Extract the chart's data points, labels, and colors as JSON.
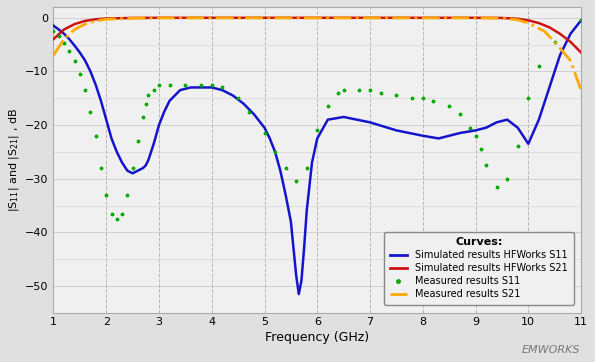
{
  "title": "",
  "xlabel": "Frequency (GHz)",
  "ylabel": "|S$_{11}$| and |S$_{21}$| , dB",
  "xlim": [
    1,
    11
  ],
  "ylim": [
    -55,
    2
  ],
  "xticks": [
    1,
    2,
    3,
    4,
    5,
    6,
    7,
    8,
    9,
    10,
    11
  ],
  "yticks": [
    0,
    -10,
    -20,
    -30,
    -40,
    -50
  ],
  "plot_bg_color": "#f0f0f0",
  "fig_bg_color": "#e0e0e0",
  "grid_color": "#d0d0d0",
  "vgrid_color": "#b8b8b8",
  "legend_title": "Curves:",
  "legend_entries": [
    {
      "label": "Simulated results HFWorks S11",
      "color": "#1414cc",
      "linestyle": "solid",
      "linewidth": 1.8
    },
    {
      "label": "Simulated results HFWorks S21",
      "color": "#cc1414",
      "linestyle": "solid",
      "linewidth": 1.8
    },
    {
      "label": "Measured results S11",
      "color": "#00aa00",
      "linestyle": "dotted",
      "linewidth": 2.0
    },
    {
      "label": "Measured results S21",
      "color": "#ffaa00",
      "linestyle": "dashdot",
      "linewidth": 2.0
    }
  ],
  "S11_sim_x": [
    1.0,
    1.1,
    1.2,
    1.3,
    1.4,
    1.5,
    1.6,
    1.7,
    1.8,
    1.9,
    2.0,
    2.1,
    2.2,
    2.3,
    2.4,
    2.5,
    2.6,
    2.7,
    2.75,
    2.8,
    2.9,
    3.0,
    3.1,
    3.2,
    3.4,
    3.6,
    3.8,
    4.0,
    4.2,
    4.4,
    4.6,
    4.8,
    5.0,
    5.1,
    5.2,
    5.3,
    5.4,
    5.5,
    5.55,
    5.6,
    5.65,
    5.7,
    5.75,
    5.8,
    5.9,
    6.0,
    6.2,
    6.5,
    7.0,
    7.5,
    8.0,
    8.3,
    8.5,
    8.7,
    9.0,
    9.2,
    9.4,
    9.6,
    9.8,
    10.0,
    10.2,
    10.4,
    10.6,
    10.8,
    11.0
  ],
  "S11_sim_y": [
    -1.5,
    -2.2,
    -3.0,
    -4.0,
    -5.2,
    -6.5,
    -8.0,
    -10.0,
    -12.5,
    -15.5,
    -19.0,
    -22.5,
    -25.0,
    -27.0,
    -28.5,
    -29.0,
    -28.5,
    -28.0,
    -27.5,
    -26.5,
    -23.5,
    -20.0,
    -17.5,
    -15.5,
    -13.5,
    -13.0,
    -13.0,
    -13.0,
    -13.5,
    -14.5,
    -16.0,
    -18.0,
    -20.5,
    -22.5,
    -25.0,
    -28.5,
    -33.0,
    -38.0,
    -43.0,
    -48.0,
    -51.5,
    -49.0,
    -43.0,
    -36.0,
    -27.0,
    -22.5,
    -19.0,
    -18.5,
    -19.5,
    -21.0,
    -22.0,
    -22.5,
    -22.0,
    -21.5,
    -21.0,
    -20.5,
    -19.5,
    -19.0,
    -20.5,
    -23.5,
    -19.0,
    -13.0,
    -7.0,
    -3.0,
    -0.5
  ],
  "S21_sim_x": [
    1.0,
    1.2,
    1.4,
    1.6,
    1.8,
    2.0,
    2.5,
    3.0,
    4.0,
    5.0,
    6.0,
    7.0,
    8.0,
    9.0,
    9.5,
    9.8,
    10.0,
    10.2,
    10.4,
    10.6,
    10.8,
    11.0
  ],
  "S21_sim_y": [
    -4.0,
    -2.2,
    -1.2,
    -0.6,
    -0.3,
    -0.15,
    -0.05,
    -0.02,
    -0.02,
    -0.02,
    -0.02,
    -0.02,
    -0.02,
    -0.02,
    -0.05,
    -0.2,
    -0.5,
    -1.0,
    -1.8,
    -3.0,
    -4.5,
    -6.5
  ],
  "S11_meas_x": [
    1.0,
    1.1,
    1.2,
    1.3,
    1.4,
    1.5,
    1.6,
    1.7,
    1.8,
    1.9,
    2.0,
    2.1,
    2.2,
    2.3,
    2.4,
    2.5,
    2.6,
    2.7,
    2.75,
    2.8,
    2.9,
    3.0,
    3.2,
    3.5,
    3.8,
    4.0,
    4.2,
    4.5,
    4.7,
    5.0,
    5.2,
    5.4,
    5.6,
    5.8,
    6.0,
    6.2,
    6.4,
    6.5,
    6.8,
    7.0,
    7.2,
    7.5,
    7.8,
    8.0,
    8.2,
    8.5,
    8.7,
    8.9,
    9.0,
    9.1,
    9.2,
    9.4,
    9.6,
    9.8,
    10.0,
    10.2,
    10.5,
    11.0
  ],
  "S11_meas_y": [
    -2.5,
    -3.5,
    -4.8,
    -6.2,
    -8.0,
    -10.5,
    -13.5,
    -17.5,
    -22.0,
    -28.0,
    -33.0,
    -36.5,
    -37.5,
    -36.5,
    -33.0,
    -28.0,
    -23.0,
    -18.5,
    -16.0,
    -14.5,
    -13.5,
    -12.5,
    -12.5,
    -12.5,
    -12.5,
    -12.5,
    -13.0,
    -15.0,
    -17.5,
    -21.5,
    -25.0,
    -28.0,
    -30.5,
    -28.0,
    -21.0,
    -16.5,
    -14.0,
    -13.5,
    -13.5,
    -13.5,
    -14.0,
    -14.5,
    -15.0,
    -15.0,
    -15.5,
    -16.5,
    -18.0,
    -20.5,
    -22.0,
    -24.5,
    -27.5,
    -31.5,
    -30.0,
    -24.0,
    -15.0,
    -9.0,
    -4.5,
    -0.5
  ],
  "S21_meas_x": [
    1.0,
    1.2,
    1.4,
    1.6,
    1.8,
    2.0,
    2.5,
    3.0,
    4.0,
    5.0,
    6.0,
    7.0,
    8.0,
    9.0,
    9.5,
    9.8,
    10.0,
    10.3,
    10.5,
    10.8,
    11.0
  ],
  "S21_meas_y": [
    -7.0,
    -4.0,
    -2.2,
    -1.2,
    -0.6,
    -0.3,
    -0.1,
    -0.05,
    -0.05,
    -0.05,
    -0.05,
    -0.05,
    -0.05,
    -0.05,
    -0.1,
    -0.4,
    -1.0,
    -2.5,
    -4.5,
    -8.0,
    -13.5
  ]
}
